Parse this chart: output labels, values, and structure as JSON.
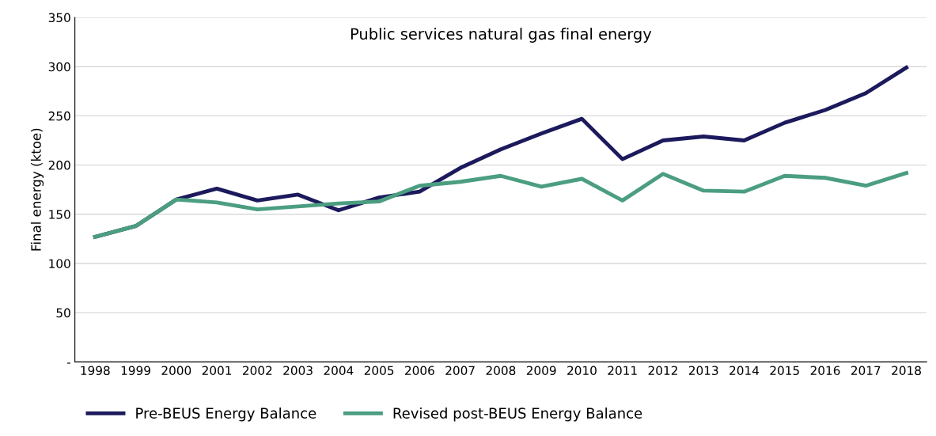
{
  "chart_data": {
    "type": "line",
    "title": "Public services natural gas final energy",
    "ylabel": "Final energy (ktoe)",
    "categories": [
      "1998",
      "1999",
      "2000",
      "2001",
      "2002",
      "2003",
      "2004",
      "2005",
      "2006",
      "2007",
      "2008",
      "2009",
      "2010",
      "2011",
      "2012",
      "2013",
      "2014",
      "2015",
      "2016",
      "2017",
      "2018"
    ],
    "series": [
      {
        "name": "Pre-BEUS Energy Balance",
        "color": "#1c1a5c",
        "values": [
          127,
          138,
          165,
          176,
          164,
          170,
          154,
          167,
          173,
          197,
          216,
          232,
          247,
          206,
          225,
          229,
          225,
          243,
          256,
          273,
          299
        ]
      },
      {
        "name": "Revised post-BEUS Energy Balance",
        "color": "#4b9e80",
        "values": [
          127,
          138,
          165,
          162,
          155,
          158,
          161,
          163,
          179,
          183,
          189,
          178,
          186,
          164,
          191,
          174,
          173,
          189,
          187,
          179,
          192
        ]
      }
    ],
    "ylim": [
      0,
      350
    ],
    "yticks": [
      {
        "value": 0,
        "label": "-"
      },
      50,
      100,
      150,
      200,
      250,
      300,
      350
    ],
    "grid": "y",
    "legend": "bottom",
    "marker": "none",
    "line_style": "solid"
  }
}
